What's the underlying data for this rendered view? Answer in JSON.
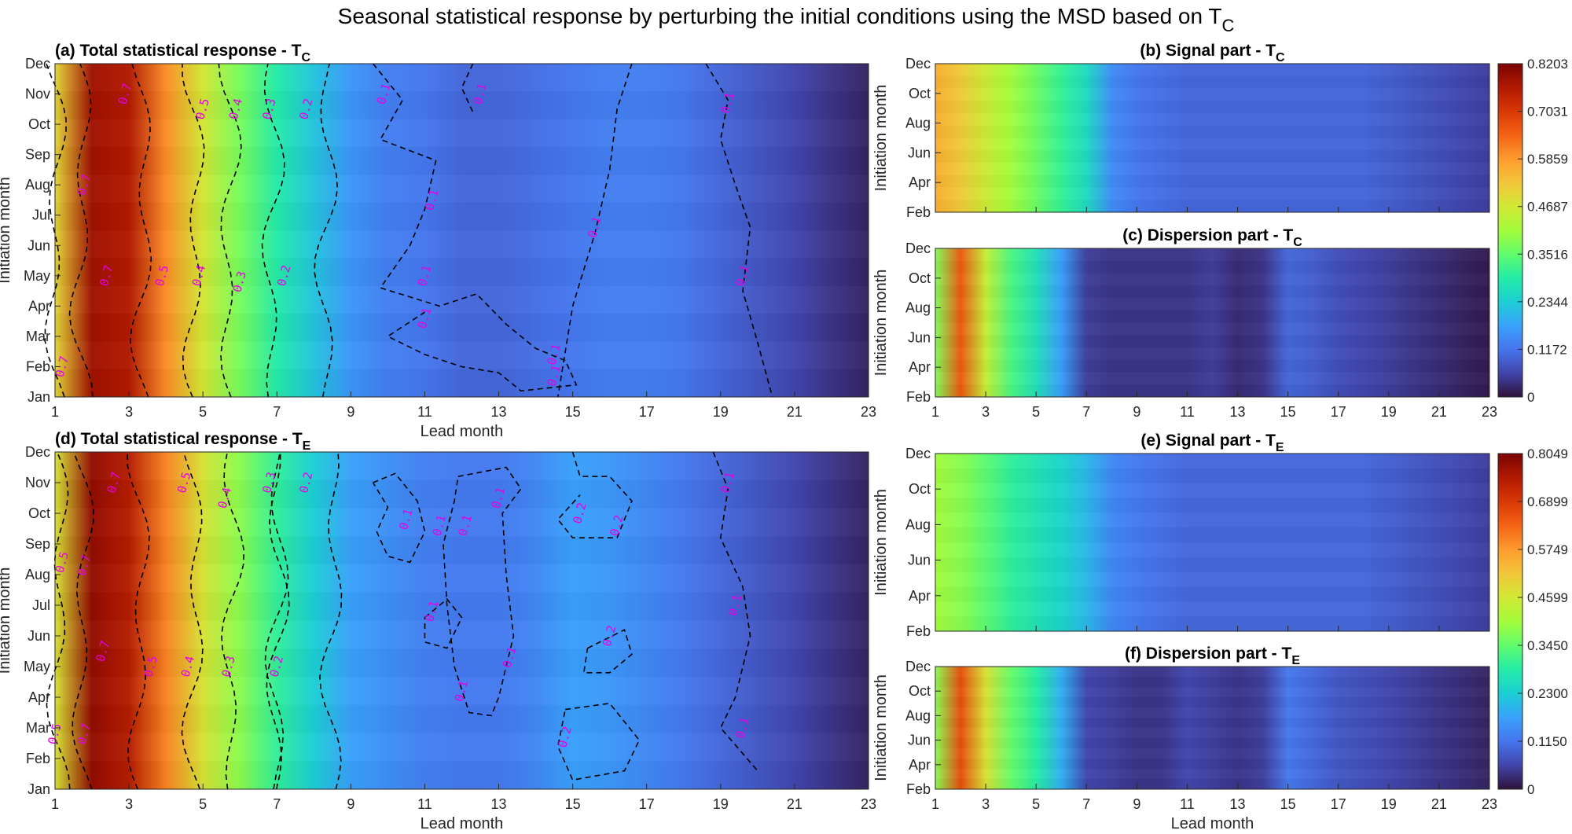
{
  "figure": {
    "title_main": "Seasonal statistical response by perturbing the initial conditions using the MSD based on T",
    "title_sub": "C"
  },
  "colors": {
    "stops": [
      "#30123b",
      "#4145ab",
      "#4675ed",
      "#39a2fc",
      "#1bcfd4",
      "#24eca6",
      "#61fc6c",
      "#a4fc3b",
      "#d1e834",
      "#f3c63a",
      "#fe9b2d",
      "#f36315",
      "#d93806",
      "#b11901",
      "#7a0403"
    ],
    "contour_line": "#000000",
    "contour_label": "#e600e6"
  },
  "chart_data": [
    {
      "id": "a",
      "type": "heatmap",
      "title": "(a) Total statistical response - T",
      "title_sub": "C",
      "xlabel": "Lead month",
      "ylabel": "Initiation month",
      "xticks": [
        "1",
        "3",
        "5",
        "7",
        "9",
        "11",
        "13",
        "15",
        "17",
        "19",
        "21",
        "23"
      ],
      "yticks": [
        "Jan",
        "Feb",
        "Mar",
        "Apr",
        "May",
        "Jun",
        "Jul",
        "Aug",
        "Sep",
        "Oct",
        "Nov",
        "Dec"
      ],
      "xlim": [
        1,
        23
      ],
      "ylim": [
        "Jan",
        "Dec"
      ],
      "clim": [
        0,
        0.8203
      ],
      "lead_profile": [
        0.5,
        0.78,
        0.76,
        0.6,
        0.47,
        0.37,
        0.29,
        0.22,
        0.16,
        0.13,
        0.12,
        0.1,
        0.1,
        0.11,
        0.12,
        0.13,
        0.13,
        0.12,
        0.1,
        0.08,
        0.06,
        0.04,
        0.02
      ],
      "contour_labels": [
        {
          "text": "0.7",
          "lead": 1.2,
          "month": 2
        },
        {
          "text": "0.7",
          "lead": 1.8,
          "month": 8
        },
        {
          "text": "0.7",
          "lead": 2.4,
          "month": 5
        },
        {
          "text": "0.7",
          "lead": 2.9,
          "month": 11
        },
        {
          "text": "0.5",
          "lead": 3.9,
          "month": 5
        },
        {
          "text": "0.5",
          "lead": 5.0,
          "month": 10.5
        },
        {
          "text": "0.4",
          "lead": 4.9,
          "month": 5
        },
        {
          "text": "0.4",
          "lead": 5.9,
          "month": 10.5
        },
        {
          "text": "0.3",
          "lead": 6.0,
          "month": 4.8
        },
        {
          "text": "0.3",
          "lead": 6.8,
          "month": 10.5
        },
        {
          "text": "0.2",
          "lead": 7.2,
          "month": 5
        },
        {
          "text": "0.2",
          "lead": 7.8,
          "month": 10.5
        },
        {
          "text": "0.1",
          "lead": 9.9,
          "month": 11
        },
        {
          "text": "0.1",
          "lead": 11.2,
          "month": 7.5
        },
        {
          "text": "0.1",
          "lead": 11.0,
          "month": 5
        },
        {
          "text": "0.1",
          "lead": 11.0,
          "month": 3.6
        },
        {
          "text": "0.1",
          "lead": 12.5,
          "month": 11
        },
        {
          "text": "0.1",
          "lead": 14.5,
          "month": 2.4
        },
        {
          "text": "0.1",
          "lead": 14.5,
          "month": 1.7
        },
        {
          "text": "0.1",
          "lead": 15.6,
          "month": 6.6
        },
        {
          "text": "0.1",
          "lead": 19.2,
          "month": 10.7
        },
        {
          "text": "0.1",
          "lead": 19.6,
          "month": 5
        }
      ]
    },
    {
      "id": "b",
      "type": "heatmap",
      "title": "(b) Signal part - T",
      "title_sub": "C",
      "xlabel": "",
      "ylabel": "Initiation month",
      "xticks": [],
      "yticks": [
        "Feb",
        "Apr",
        "Jun",
        "Aug",
        "Oct",
        "Dec"
      ],
      "xlim": [
        1,
        23
      ],
      "clim": [
        0,
        0.8203
      ],
      "lead_profile": [
        0.56,
        0.52,
        0.46,
        0.41,
        0.36,
        0.31,
        0.26,
        0.15,
        0.12,
        0.11,
        0.1,
        0.1,
        0.1,
        0.1,
        0.1,
        0.1,
        0.1,
        0.1,
        0.09,
        0.08,
        0.07,
        0.06,
        0.05
      ]
    },
    {
      "id": "c",
      "type": "heatmap",
      "title": "(c) Dispersion part - T",
      "title_sub": "C",
      "xlabel": "",
      "ylabel": "Initiation month",
      "xticks": [
        "1",
        "3",
        "5",
        "7",
        "9",
        "11",
        "13",
        "15",
        "17",
        "19",
        "21",
        "23"
      ],
      "yticks": [
        "Feb",
        "Apr",
        "Jun",
        "Aug",
        "Oct",
        "Dec"
      ],
      "xlim": [
        1,
        23
      ],
      "clim": [
        0,
        0.8203
      ],
      "lead_profile": [
        0.38,
        0.66,
        0.45,
        0.33,
        0.27,
        0.17,
        0.05,
        0.04,
        0.04,
        0.04,
        0.04,
        0.05,
        0.03,
        0.04,
        0.1,
        0.09,
        0.07,
        0.06,
        0.05,
        0.04,
        0.03,
        0.02,
        0.01
      ]
    },
    {
      "id": "d",
      "type": "heatmap",
      "title": "(d) Total statistical response - T",
      "title_sub": "E",
      "xlabel": "Lead month",
      "ylabel": "Initiation month",
      "xticks": [
        "1",
        "3",
        "5",
        "7",
        "9",
        "11",
        "13",
        "15",
        "17",
        "19",
        "21",
        "23"
      ],
      "yticks": [
        "Jan",
        "Feb",
        "Mar",
        "Apr",
        "May",
        "Jun",
        "Jul",
        "Aug",
        "Sep",
        "Oct",
        "Nov",
        "Dec"
      ],
      "xlim": [
        1,
        23
      ],
      "ylim": [
        "Jan",
        "Dec"
      ],
      "clim": [
        0,
        0.8049
      ],
      "lead_profile": [
        0.47,
        0.78,
        0.74,
        0.6,
        0.47,
        0.38,
        0.3,
        0.23,
        0.17,
        0.15,
        0.13,
        0.12,
        0.12,
        0.14,
        0.17,
        0.16,
        0.14,
        0.12,
        0.1,
        0.08,
        0.06,
        0.04,
        0.02
      ],
      "contour_labels": [
        {
          "text": "0.5",
          "lead": 1.2,
          "month": 8.4
        },
        {
          "text": "0.5",
          "lead": 1.0,
          "month": 2.8
        },
        {
          "text": "0.7",
          "lead": 1.8,
          "month": 8.3
        },
        {
          "text": "0.7",
          "lead": 1.8,
          "month": 2.8
        },
        {
          "text": "0.7",
          "lead": 2.3,
          "month": 5.5
        },
        {
          "text": "0.7",
          "lead": 2.6,
          "month": 11
        },
        {
          "text": "0.5",
          "lead": 3.6,
          "month": 5
        },
        {
          "text": "0.5",
          "lead": 4.5,
          "month": 11
        },
        {
          "text": "0.4",
          "lead": 4.6,
          "month": 5
        },
        {
          "text": "0.4",
          "lead": 5.6,
          "month": 10.5
        },
        {
          "text": "0.3",
          "lead": 5.7,
          "month": 5
        },
        {
          "text": "0.3",
          "lead": 6.8,
          "month": 11
        },
        {
          "text": "0.2",
          "lead": 7.0,
          "month": 5
        },
        {
          "text": "0.2",
          "lead": 7.8,
          "month": 11
        },
        {
          "text": "0.1",
          "lead": 10.5,
          "month": 9.8
        },
        {
          "text": "0.1",
          "lead": 11.4,
          "month": 9.6
        },
        {
          "text": "0.1",
          "lead": 12.1,
          "month": 9.6
        },
        {
          "text": "0.1",
          "lead": 13.0,
          "month": 10.5
        },
        {
          "text": "0.1",
          "lead": 11.2,
          "month": 6.8
        },
        {
          "text": "0.1",
          "lead": 13.3,
          "month": 5.3
        },
        {
          "text": "0.1",
          "lead": 12.0,
          "month": 4.2
        },
        {
          "text": "0.2",
          "lead": 15.2,
          "month": 10
        },
        {
          "text": "0.2",
          "lead": 16.2,
          "month": 9.6
        },
        {
          "text": "0.2",
          "lead": 16.0,
          "month": 6
        },
        {
          "text": "0.2",
          "lead": 14.8,
          "month": 2.7
        },
        {
          "text": "0.1",
          "lead": 19.2,
          "month": 11
        },
        {
          "text": "0.1",
          "lead": 19.4,
          "month": 7
        },
        {
          "text": "0.1",
          "lead": 19.6,
          "month": 3
        }
      ]
    },
    {
      "id": "e",
      "type": "heatmap",
      "title": "(e) Signal part - T",
      "title_sub": "E",
      "xlabel": "",
      "ylabel": "Initiation month",
      "xticks": [],
      "yticks": [
        "Feb",
        "Apr",
        "Jun",
        "Aug",
        "Oct",
        "Dec"
      ],
      "xlim": [
        1,
        23
      ],
      "clim": [
        0,
        0.8049
      ],
      "lead_profile": [
        0.4,
        0.38,
        0.34,
        0.3,
        0.27,
        0.24,
        0.2,
        0.14,
        0.12,
        0.11,
        0.1,
        0.1,
        0.1,
        0.1,
        0.1,
        0.1,
        0.1,
        0.1,
        0.09,
        0.08,
        0.07,
        0.06,
        0.05
      ]
    },
    {
      "id": "f",
      "type": "heatmap",
      "title": "(f) Dispersion part - T",
      "title_sub": "E",
      "xlabel": "Lead month",
      "ylabel": "Initiation month",
      "xticks": [
        "1",
        "3",
        "5",
        "7",
        "9",
        "11",
        "13",
        "15",
        "17",
        "19",
        "21",
        "23"
      ],
      "yticks": [
        "Feb",
        "Apr",
        "Jun",
        "Aug",
        "Oct",
        "Dec"
      ],
      "xlim": [
        1,
        23
      ],
      "clim": [
        0,
        0.8049
      ],
      "lead_profile": [
        0.38,
        0.66,
        0.47,
        0.35,
        0.29,
        0.19,
        0.06,
        0.05,
        0.04,
        0.04,
        0.06,
        0.05,
        0.04,
        0.05,
        0.12,
        0.1,
        0.08,
        0.07,
        0.06,
        0.05,
        0.04,
        0.03,
        0.02
      ]
    }
  ],
  "colorbars": [
    {
      "id": "top",
      "ticks": [
        "0.8203",
        "0.7031",
        "0.5859",
        "0.4687",
        "0.3516",
        "0.2344",
        "0.1172",
        "0"
      ],
      "values": [
        0.8203,
        0.7031,
        0.5859,
        0.4687,
        0.3516,
        0.2344,
        0.1172,
        0
      ],
      "clim": [
        0,
        0.8203
      ]
    },
    {
      "id": "bottom",
      "ticks": [
        "0.8049",
        "0.6899",
        "0.5749",
        "0.4599",
        "0.3450",
        "0.2300",
        "0.1150",
        "0"
      ],
      "values": [
        0.8049,
        0.6899,
        0.5749,
        0.4599,
        0.345,
        0.23,
        0.115,
        0
      ],
      "clim": [
        0,
        0.8049
      ]
    }
  ]
}
